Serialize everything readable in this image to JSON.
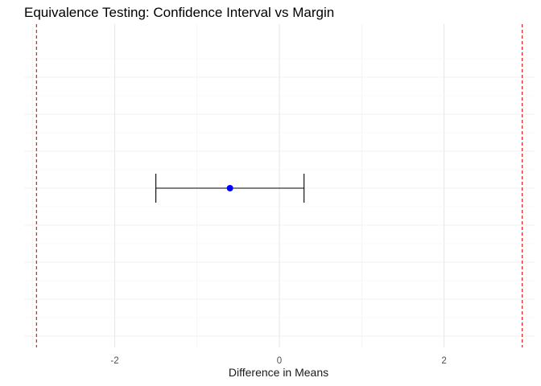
{
  "chart_data": {
    "type": "scatter",
    "title": "Equivalence Testing: Confidence Interval vs Margin",
    "xlabel": "Difference in Means",
    "ylabel": "",
    "xlim": [
      -3.1,
      3.1
    ],
    "x_ticks": [
      -2,
      0,
      2
    ],
    "x_tick_labels": [
      "-2",
      "0",
      "2"
    ],
    "grid": true,
    "point": {
      "estimate": -0.6,
      "ci_lower": -1.5,
      "ci_upper": 0.3,
      "color": "#0000ff"
    },
    "margins": {
      "lower": -2.95,
      "upper": 2.95,
      "color": "#e41a1c",
      "style": "dashed"
    },
    "errorbar_color": "#000000"
  }
}
